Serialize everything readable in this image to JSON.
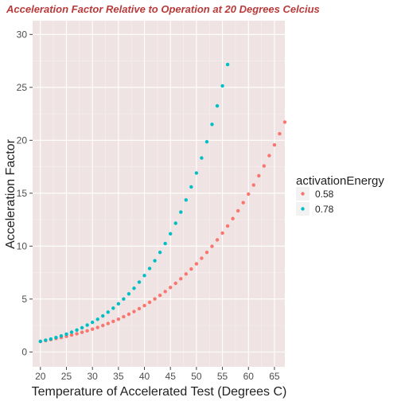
{
  "chart_data": {
    "type": "scatter",
    "title": "Acceleration Factor Relative to Operation at 20 Degrees Celcius",
    "xlabel": "Temperature of Accelerated Test (Degrees C)",
    "ylabel": "Acceleration Factor",
    "xlim": [
      18.5,
      67
    ],
    "ylim": [
      -1.4,
      31.3
    ],
    "x_ticks": [
      "20",
      "25",
      "30",
      "35",
      "40",
      "45",
      "50",
      "55",
      "60",
      "65"
    ],
    "y_ticks": [
      "0",
      "5",
      "10",
      "15",
      "20",
      "25",
      "30"
    ],
    "grid": true,
    "legend_position": "right",
    "legend_title": "activationEnergy",
    "series": [
      {
        "name": "0.58",
        "color": "#F8766D",
        "x": [
          20,
          21,
          22,
          23,
          24,
          25,
          26,
          27,
          28,
          29,
          30,
          31,
          32,
          33,
          34,
          35,
          36,
          37,
          38,
          39,
          40,
          41,
          42,
          43,
          44,
          45,
          46,
          47,
          48,
          49,
          50,
          51,
          52,
          53,
          54,
          55,
          56,
          57,
          58,
          59,
          60,
          61,
          62,
          63,
          64,
          65,
          66,
          67
        ],
        "y": [
          1.0,
          1.08,
          1.17,
          1.27,
          1.37,
          1.48,
          1.6,
          1.72,
          1.86,
          2.0,
          2.16,
          2.32,
          2.5,
          2.69,
          2.89,
          3.1,
          3.33,
          3.57,
          3.82,
          4.09,
          4.38,
          4.69,
          5.01,
          5.35,
          5.71,
          6.09,
          6.49,
          6.92,
          7.37,
          7.84,
          8.33,
          8.86,
          9.41,
          9.98,
          10.59,
          11.23,
          11.9,
          12.6,
          13.34,
          14.11,
          14.92,
          15.77,
          16.65,
          17.58,
          18.55,
          19.56,
          20.62,
          21.72
        ]
      },
      {
        "name": "0.78",
        "color": "#00BFC4",
        "x": [
          20,
          21,
          22,
          23,
          24,
          25,
          26,
          27,
          28,
          29,
          30,
          31,
          32,
          33,
          34,
          35,
          36,
          37,
          38,
          39,
          40,
          41,
          42,
          43,
          44,
          45,
          46,
          47,
          48,
          49,
          50,
          51,
          52,
          53,
          54,
          55,
          56
        ],
        "y": [
          1.0,
          1.11,
          1.23,
          1.37,
          1.52,
          1.69,
          1.87,
          2.07,
          2.29,
          2.54,
          2.8,
          3.09,
          3.41,
          3.76,
          4.14,
          4.55,
          5.0,
          5.49,
          6.02,
          6.6,
          7.22,
          7.89,
          8.62,
          9.41,
          10.25,
          11.17,
          12.16,
          13.22,
          14.36,
          15.59,
          16.91,
          18.33,
          19.86,
          21.5,
          23.25,
          25.14,
          27.16
        ]
      }
    ]
  }
}
